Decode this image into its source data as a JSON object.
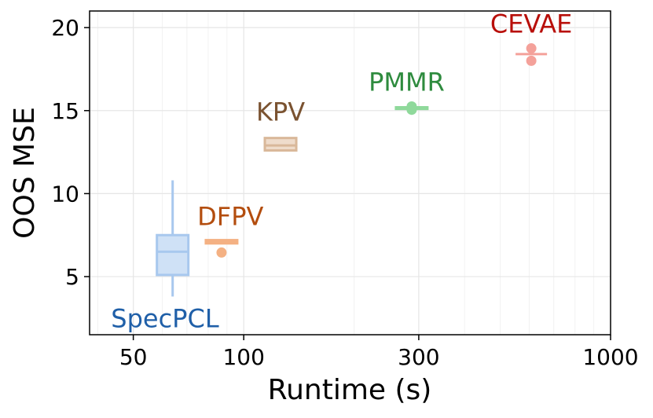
{
  "chart_data": {
    "type": "box",
    "title": "",
    "xlabel": "Runtime (s)",
    "ylabel": "OOS MSE",
    "xscale": "log",
    "xlim": [
      38,
      1000
    ],
    "ylim": [
      1.5,
      21
    ],
    "xticks": [
      50,
      100,
      300,
      1000
    ],
    "xtick_labels": [
      "50",
      "100",
      "300",
      "1000"
    ],
    "yticks": [
      5,
      10,
      15,
      20
    ],
    "ytick_labels": [
      "5",
      "10",
      "15",
      "20"
    ],
    "grid": true,
    "series": [
      {
        "name": "SpecPCL",
        "runtime": 64,
        "whisker_low": 3.8,
        "q1": 5.1,
        "median": 6.5,
        "q3": 7.5,
        "whisker_high": 10.8,
        "outliers": [],
        "box_color": "#a8c8ee",
        "fill_color": "#cfe1f6",
        "label_color": "#1f5fa8",
        "label_pos": {
          "runtime": 61,
          "mse": 1.95
        }
      },
      {
        "name": "DFPV",
        "runtime": 87,
        "whisker_low": 7.0,
        "q1": 7.0,
        "median": 7.1,
        "q3": 7.2,
        "whisker_high": 7.2,
        "outliers": [
          6.45
        ],
        "box_color": "#f4b183",
        "fill_color": "#fbd9c0",
        "label_color": "#b34d0e",
        "label_pos": {
          "runtime": 92,
          "mse": 8.1
        }
      },
      {
        "name": "KPV",
        "runtime": 126,
        "whisker_low": 12.6,
        "q1": 12.6,
        "median": 12.9,
        "q3": 13.35,
        "whisker_high": 13.35,
        "outliers": [],
        "box_color": "#d9b89a",
        "fill_color": "#efdccb",
        "label_color": "#7a5230",
        "label_pos": {
          "runtime": 126,
          "mse": 14.4
        }
      },
      {
        "name": "PMMR",
        "runtime": 287,
        "whisker_low": 15.1,
        "q1": 15.1,
        "median": 15.2,
        "q3": 15.2,
        "whisker_high": 15.2,
        "outliers": [
          15.05,
          15.25
        ],
        "box_color": "#8fd99b",
        "fill_color": "#c5eccb",
        "label_color": "#2e8b3e",
        "label_pos": {
          "runtime": 278,
          "mse": 16.2
        }
      },
      {
        "name": "CEVAE",
        "runtime": 608,
        "whisker_low": 18.4,
        "q1": 18.4,
        "median": 18.4,
        "q3": 18.4,
        "whisker_high": 18.4,
        "outliers": [
          18.75,
          18.0
        ],
        "box_color": "#f4a19a",
        "fill_color": "#fbd0cc",
        "label_color": "#b80f0a",
        "label_pos": {
          "runtime": 608,
          "mse": 19.7
        }
      }
    ]
  }
}
